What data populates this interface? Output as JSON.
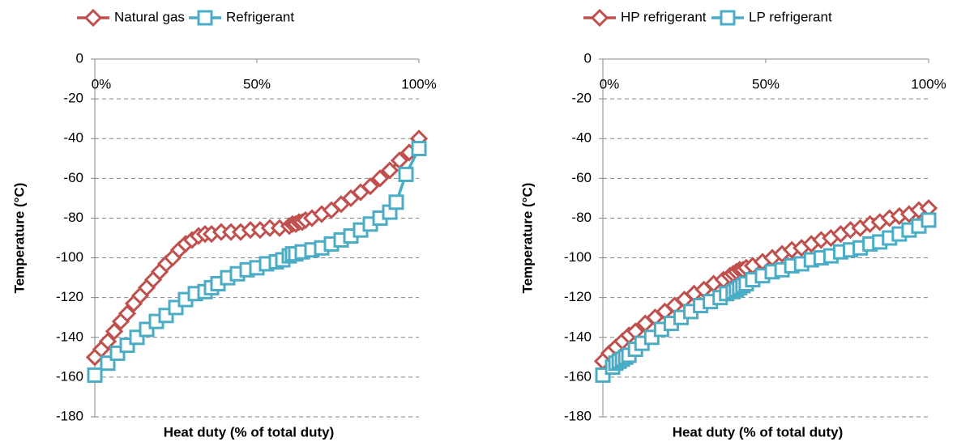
{
  "chart_data": [
    {
      "type": "line",
      "y_label": "Temperature (°C)",
      "x_label": "Heat duty (% of total duty)",
      "xlim": [
        0,
        100
      ],
      "xticks": [
        {
          "value": 0,
          "label": "0%"
        },
        {
          "value": 50,
          "label": "50%"
        },
        {
          "value": 100,
          "label": "100%"
        }
      ],
      "ylim": [
        -180,
        0
      ],
      "yticks": [
        0,
        -20,
        -40,
        -60,
        -80,
        -100,
        -120,
        -140,
        -160,
        -180
      ],
      "grid": true,
      "legend": "top",
      "series": [
        {
          "name": "Natural gas",
          "color": "#c0504d",
          "marker": "diamond",
          "x": [
            0,
            2,
            4,
            6,
            8,
            10,
            12,
            14,
            16,
            18,
            20,
            22,
            24,
            26,
            28,
            30,
            32,
            34,
            36,
            39,
            42,
            45,
            48,
            51,
            54,
            57,
            60,
            61,
            62,
            63,
            64,
            65,
            67,
            70,
            73,
            76,
            79,
            82,
            85,
            88,
            91,
            94,
            97,
            100
          ],
          "values": [
            -150,
            -146,
            -142,
            -137,
            -132,
            -128,
            -123,
            -119,
            -115,
            -111,
            -107,
            -103,
            -100,
            -96,
            -93,
            -91,
            -89,
            -88,
            -88,
            -87,
            -87,
            -87,
            -86,
            -86,
            -85,
            -85,
            -84,
            -83,
            -83,
            -82,
            -82,
            -81,
            -80,
            -78,
            -76,
            -73,
            -70,
            -67,
            -64,
            -60,
            -56,
            -51,
            -47,
            -40
          ]
        },
        {
          "name": "Refrigerant",
          "color": "#4bacc6",
          "marker": "square",
          "x": [
            0,
            4,
            7,
            10,
            13,
            16,
            19,
            22,
            25,
            28,
            31,
            34,
            36,
            38,
            41,
            44,
            47,
            50,
            53,
            56,
            58,
            60,
            61,
            62,
            64,
            67,
            70,
            73,
            76,
            79,
            82,
            85,
            88,
            91,
            93,
            96,
            100
          ],
          "values": [
            -159,
            -153,
            -148,
            -144,
            -140,
            -136,
            -132,
            -129,
            -125,
            -121,
            -118,
            -117,
            -115,
            -113,
            -110,
            -108,
            -106,
            -105,
            -103,
            -102,
            -101,
            -99,
            -98,
            -98,
            -97,
            -96,
            -95,
            -93,
            -91,
            -89,
            -86,
            -83,
            -80,
            -77,
            -72,
            -58,
            -45
          ]
        }
      ]
    },
    {
      "type": "line",
      "y_label": "Temperature (°C)",
      "x_label": "Heat duty (% of total duty)",
      "xlim": [
        0,
        100
      ],
      "xticks": [
        {
          "value": 0,
          "label": "0%"
        },
        {
          "value": 50,
          "label": "50%"
        },
        {
          "value": 100,
          "label": "100%"
        }
      ],
      "ylim": [
        -180,
        0
      ],
      "yticks": [
        0,
        -20,
        -40,
        -60,
        -80,
        -100,
        -120,
        -140,
        -160,
        -180
      ],
      "grid": true,
      "legend": "top",
      "series": [
        {
          "name": "HP refrigerant",
          "color": "#c0504d",
          "marker": "diamond",
          "x": [
            0,
            2,
            4,
            6,
            8,
            10,
            13,
            16,
            19,
            22,
            25,
            28,
            31,
            34,
            37,
            39,
            40,
            41,
            42,
            43,
            44,
            46,
            49,
            52,
            55,
            58,
            61,
            64,
            67,
            70,
            73,
            76,
            79,
            82,
            85,
            88,
            91,
            94,
            97,
            100
          ],
          "values": [
            -152,
            -148,
            -145,
            -142,
            -139,
            -137,
            -133,
            -130,
            -127,
            -124,
            -121,
            -118,
            -116,
            -113,
            -111,
            -109,
            -108,
            -107,
            -106,
            -106,
            -105,
            -104,
            -102,
            -100,
            -98,
            -96,
            -95,
            -93,
            -91,
            -90,
            -88,
            -86,
            -85,
            -83,
            -82,
            -80,
            -79,
            -78,
            -76,
            -75
          ]
        },
        {
          "name": "LP refrigerant",
          "color": "#4bacc6",
          "marker": "square",
          "x": [
            0,
            3,
            4,
            5,
            6,
            7,
            8,
            10,
            12,
            15,
            18,
            21,
            24,
            27,
            30,
            33,
            36,
            38,
            40,
            41,
            42,
            43,
            44,
            46,
            49,
            52,
            55,
            58,
            61,
            64,
            67,
            70,
            73,
            76,
            79,
            82,
            85,
            88,
            91,
            94,
            97,
            100
          ],
          "values": [
            -159,
            -155,
            -153,
            -152,
            -151,
            -150,
            -149,
            -146,
            -143,
            -140,
            -136,
            -133,
            -130,
            -127,
            -124,
            -122,
            -120,
            -118,
            -117,
            -116,
            -115,
            -114,
            -113,
            -111,
            -109,
            -107,
            -106,
            -104,
            -103,
            -101,
            -100,
            -99,
            -97,
            -96,
            -95,
            -93,
            -92,
            -90,
            -88,
            -86,
            -84,
            -81
          ]
        }
      ]
    }
  ]
}
